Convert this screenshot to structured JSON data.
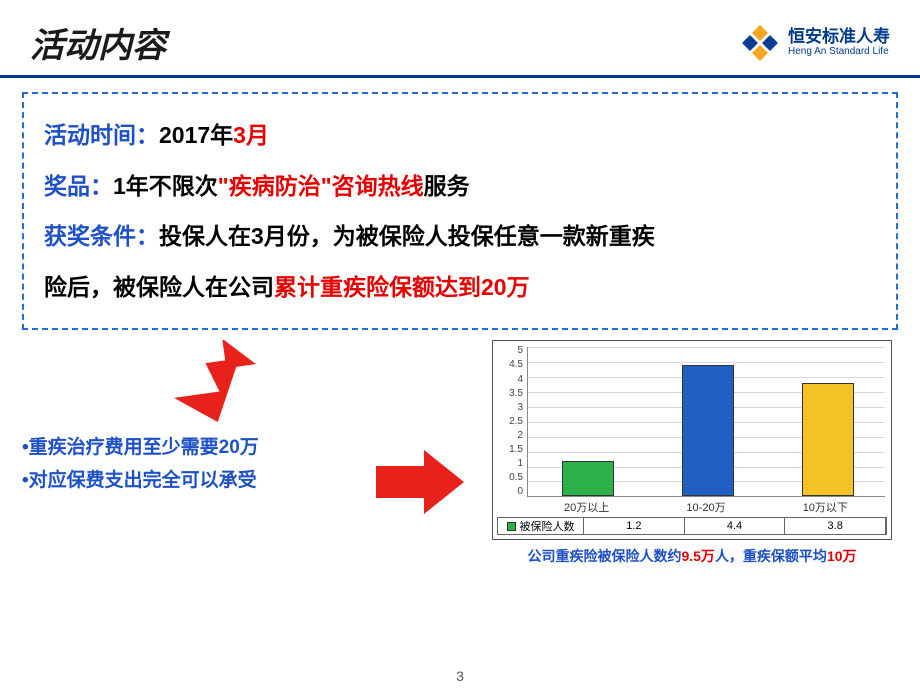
{
  "header": {
    "title": "活动内容",
    "logo_cn": "恒安标准人寿",
    "logo_en": "Heng An Standard Life"
  },
  "box": {
    "line1_label": "活动时间：",
    "line1_val_black": "2017年",
    "line1_val_red": "3月",
    "line2_label": "奖品：",
    "line2_a": "1年不限次",
    "line2_red": "\"疾病防治\"咨询热线",
    "line2_b": "服务",
    "line3_label": "获奖条件：",
    "line3_a": "投保人在3月份，为被保险人投保任意一款新重疾",
    "line4_a": "险后，被保险人在公司",
    "line4_red": "累计重疾险保额达到20万"
  },
  "bullets": {
    "b1": "•重疾治疗费用至少需要20万",
    "b2": "•对应保费支出完全可以承受"
  },
  "chart": {
    "type": "bar",
    "ylim": [
      0,
      5
    ],
    "ytick_step": 0.5,
    "yticks": [
      "5",
      "4.5",
      "4",
      "3.5",
      "3",
      "2.5",
      "2",
      "1.5",
      "1",
      "0.5",
      "0"
    ],
    "categories": [
      "20万以上",
      "10-20万",
      "10万以下"
    ],
    "values": [
      1.2,
      4.4,
      3.8
    ],
    "bar_colors": [
      "#2fb14a",
      "#1f5fc4",
      "#f5c325"
    ],
    "bar_border": "#333333",
    "grid_color": "#d8d8d8",
    "border_color": "#555555",
    "legend_label": "被保险人数",
    "legend_marker": "#2fb14a"
  },
  "caption": {
    "a": "公司重疾险被保险人数约",
    "b": "9.5万",
    "c": "人，重疾保额平均",
    "d": "10万"
  },
  "arrow_color": "#e8211a",
  "page_number": "3"
}
